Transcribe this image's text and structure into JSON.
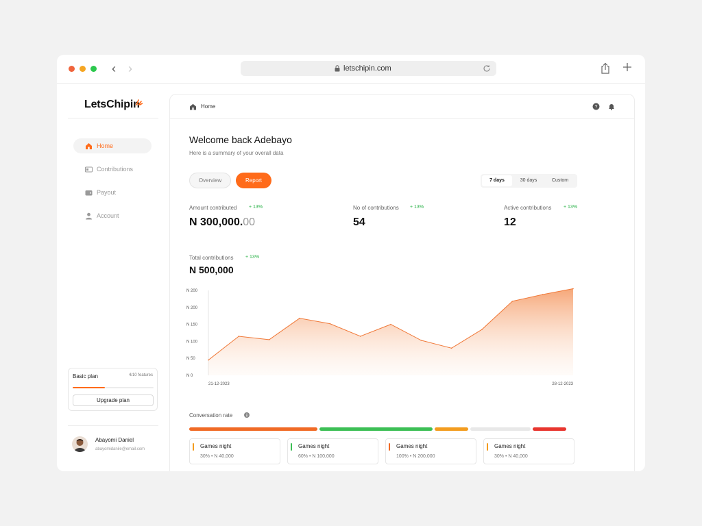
{
  "browser": {
    "url": "letschipin.com"
  },
  "sidebar": {
    "logo": "LetsChipin",
    "items": [
      {
        "label": "Home",
        "icon": "home-icon",
        "active": true
      },
      {
        "label": "Contributions",
        "icon": "contributions-icon",
        "active": false
      },
      {
        "label": "Payout",
        "icon": "wallet-icon",
        "active": false
      },
      {
        "label": "Account",
        "icon": "user-icon",
        "active": false
      }
    ],
    "plan": {
      "name": "Basic plan",
      "count": "4/10 features",
      "progress": 0.4,
      "upgrade_label": "Upgrade plan"
    },
    "user": {
      "name": "Abayomi Daniel",
      "email": "abayomidanile@email.com"
    }
  },
  "header": {
    "breadcrumb": "Home"
  },
  "main": {
    "welcome": "Welcome back Adebayo",
    "subtitle": "Here is a summary of your overall data",
    "tabs": {
      "overview": "Overview",
      "report": "Report"
    },
    "ranges": [
      "7 days",
      "30 days",
      "Custom"
    ],
    "selected_range": "7 days",
    "stats": [
      {
        "label": "Amount contributed",
        "delta": "+ 13%",
        "value": "N 300,000.",
        "cents": "00"
      },
      {
        "label": "No of contributions",
        "delta": "+ 13%",
        "value": "54",
        "cents": ""
      },
      {
        "label": "Active contributions",
        "delta": "+ 13%",
        "value": "12",
        "cents": ""
      }
    ],
    "total": {
      "label": "Total contributions",
      "delta": "+ 13%",
      "value": "N 500,000"
    },
    "conversion": {
      "label": "Conversation rate",
      "segments": [
        {
          "color": "#f06a25",
          "share": 0.34
        },
        {
          "color": "#3cbf55",
          "share": 0.3
        },
        {
          "color": "#f39c1f",
          "share": 0.09
        },
        {
          "color": "#e8e8e8",
          "share": 0.16
        },
        {
          "color": "#e8352e",
          "share": 0.09
        }
      ],
      "cards": [
        {
          "title": "Games night",
          "meta": "30% • N 40,000",
          "color": "#f39c1f"
        },
        {
          "title": "Games night",
          "meta": "60% • N 100,000",
          "color": "#3cbf55"
        },
        {
          "title": "Games night",
          "meta": "100% • N 200,000",
          "color": "#f06a25"
        },
        {
          "title": "Games night",
          "meta": "30% • N 40,000",
          "color": "#f39c1f"
        }
      ]
    }
  },
  "chart_data": {
    "type": "area",
    "title": "",
    "xlabel": "",
    "ylabel": "",
    "y_tick_labels": [
      "N 0",
      "N 50",
      "N 100",
      "N 150",
      "N 200",
      "N 200"
    ],
    "ylim": [
      0,
      250
    ],
    "x_tick_labels": [
      "21-12-2023",
      "28-12-2023"
    ],
    "values": [
      45,
      115,
      105,
      168,
      152,
      115,
      150,
      103,
      80,
      135,
      218,
      238,
      255
    ],
    "color": "#f07a3a",
    "grid": false
  }
}
